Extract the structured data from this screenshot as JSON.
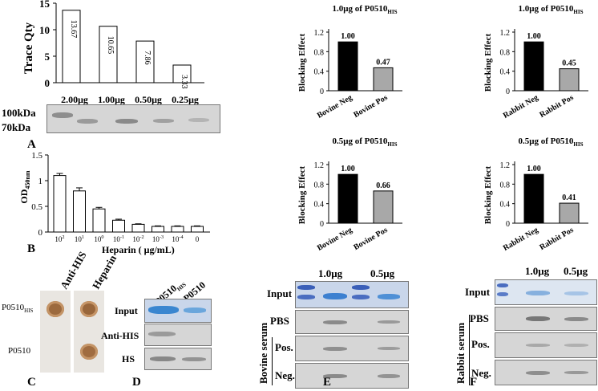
{
  "panel_letters": {
    "A": "A",
    "B": "B",
    "C": "C",
    "D": "D",
    "E": "E",
    "F": "F"
  },
  "panelA": {
    "ylabel": "Trace Qty",
    "yticks": [
      "0",
      "5",
      "10",
      "15"
    ],
    "ylim": [
      0,
      15
    ],
    "categories": [
      "2.00μg",
      "1.00μg",
      "0.50μg",
      "0.25μg"
    ],
    "bar_labels": [
      "13.67",
      "10.65",
      "7.86",
      "3.33"
    ],
    "blot_markers": [
      "100kDa",
      "70kDa"
    ]
  },
  "panelB": {
    "ylabel": "OD450nm",
    "yticks": [
      "0",
      "0.5",
      "1",
      "1.5"
    ],
    "xticks": [
      "10^2",
      "10^1",
      "10^0",
      "10^-1",
      "10^-2",
      "10^-3",
      "10^-4",
      "0"
    ],
    "xlabel": "Heparin ( μg/mL)"
  },
  "panelC": {
    "columns": [
      "Anti-HIS",
      "Heparin"
    ],
    "rows": [
      "P0510HIS",
      "P0510"
    ]
  },
  "panelD": {
    "columns": [
      "P0510HIS",
      "P0510"
    ],
    "rows": [
      "Input",
      "Anti-HIS",
      "HS"
    ]
  },
  "bovine_charts": [
    {
      "title": "1.0μg of P0510HIS",
      "ylabel": "Blocking Effect",
      "yticks": [
        "0",
        "0.4",
        "0.8",
        "1.2"
      ],
      "categories": [
        "Bovine Neg",
        "Bovine Pos"
      ],
      "labels": [
        "1.00",
        "0.47"
      ]
    },
    {
      "title": "0.5μg of P0510HIS",
      "ylabel": "Blocking Effect",
      "yticks": [
        "0",
        "0.4",
        "0.8",
        "1.2"
      ],
      "categories": [
        "Bovine Neg",
        "Bovine Pos"
      ],
      "labels": [
        "1.00",
        "0.66"
      ]
    }
  ],
  "rabbit_charts": [
    {
      "title": "1.0μg of P0510HIS",
      "ylabel": "Blocking Effect",
      "yticks": [
        "0",
        "0.4",
        "0.8",
        "1.2"
      ],
      "categories": [
        "Rabbit Neg",
        "Rabbit Pos"
      ],
      "labels": [
        "1.00",
        "0.45"
      ]
    },
    {
      "title": "0.5μg of P0510HIS",
      "ylabel": "Blocking Effect",
      "yticks": [
        "0",
        "0.4",
        "0.8",
        "1.2"
      ],
      "categories": [
        "Rabbit Neg",
        "Rabbit Pos"
      ],
      "labels": [
        "1.00",
        "0.41"
      ]
    }
  ],
  "panelE": {
    "conc": [
      "1.0μg",
      "0.5μg"
    ],
    "rows": [
      "Input",
      "PBS",
      "Pos.",
      "Neg."
    ],
    "side": "Bovine serum"
  },
  "panelF": {
    "conc": [
      "1.0μg",
      "0.5μg"
    ],
    "rows": [
      "Input",
      "PBS",
      "Pos.",
      "Neg."
    ],
    "side": "Rabbit serum"
  },
  "chart_data": [
    {
      "type": "bar",
      "categories": [
        "2.00μg",
        "1.00μg",
        "0.50μg",
        "0.25μg"
      ],
      "values": [
        13.67,
        10.65,
        7.86,
        3.33
      ],
      "ylabel": "Trace Qty",
      "ylim": [
        0,
        15
      ]
    },
    {
      "type": "bar",
      "categories": [
        "10^2",
        "10^1",
        "10^0",
        "10^-1",
        "10^-2",
        "10^-3",
        "10^-4",
        "0"
      ],
      "values": [
        1.1,
        0.8,
        0.45,
        0.23,
        0.15,
        0.11,
        0.11,
        0.11
      ],
      "errors": [
        0.04,
        0.06,
        0.03,
        0.02,
        0.01,
        0.01,
        0.01,
        0.01
      ],
      "ylabel": "OD450nm",
      "xlabel": "Heparin ( μg/mL)",
      "ylim": [
        0,
        1.5
      ]
    },
    {
      "type": "bar",
      "title": "1.0μg of P0510HIS",
      "categories": [
        "Bovine Neg",
        "Bovine Pos"
      ],
      "values": [
        1.0,
        0.47
      ],
      "ylabel": "Blocking Effect",
      "ylim": [
        0,
        1.2
      ]
    },
    {
      "type": "bar",
      "title": "0.5μg of P0510HIS",
      "categories": [
        "Bovine Neg",
        "Bovine Pos"
      ],
      "values": [
        1.0,
        0.66
      ],
      "ylabel": "Blocking Effect",
      "ylim": [
        0,
        1.2
      ]
    },
    {
      "type": "bar",
      "title": "1.0μg of P0510HIS",
      "categories": [
        "Rabbit Neg",
        "Rabbit Pos"
      ],
      "values": [
        1.0,
        0.45
      ],
      "ylabel": "Blocking Effect",
      "ylim": [
        0,
        1.2
      ]
    },
    {
      "type": "bar",
      "title": "0.5μg of P0510HIS",
      "categories": [
        "Rabbit Neg",
        "Rabbit Pos"
      ],
      "values": [
        1.0,
        0.41
      ],
      "ylabel": "Blocking Effect",
      "ylim": [
        0,
        1.2
      ]
    }
  ]
}
